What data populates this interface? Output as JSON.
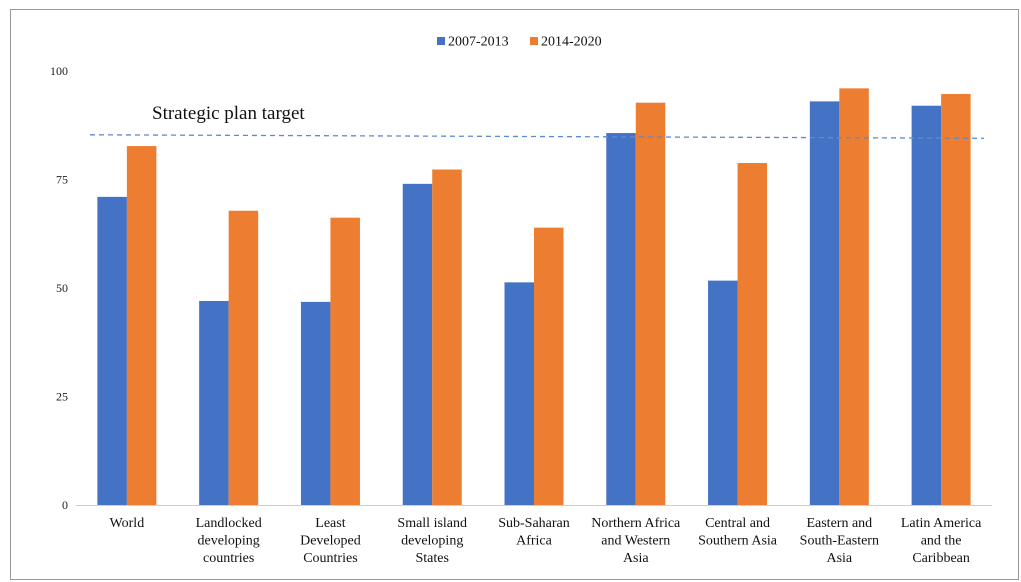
{
  "chart_data": {
    "type": "bar",
    "categories": [
      [
        "World"
      ],
      [
        "Landlocked",
        "developing",
        "countries"
      ],
      [
        "Least",
        "Developed",
        "Countries"
      ],
      [
        "Small island",
        "developing",
        "States"
      ],
      [
        "Sub-Saharan",
        "Africa"
      ],
      [
        "Northern Africa",
        "and Western",
        "Asia"
      ],
      [
        "Central and",
        "Southern Asia"
      ],
      [
        "Eastern and",
        "South-Eastern",
        "Asia"
      ],
      [
        "Latin America",
        "and the",
        "Caribbean"
      ]
    ],
    "series": [
      {
        "name": "2007-2013",
        "color": "#4472c4",
        "values": [
          71,
          47,
          46.8,
          74,
          51.3,
          85.7,
          51.7,
          93,
          92
        ]
      },
      {
        "name": "2014-2020",
        "color": "#ed7d31",
        "values": [
          82.7,
          67.8,
          66.2,
          77.3,
          63.9,
          92.7,
          78.8,
          96,
          94.7
        ]
      }
    ],
    "ylim": [
      0,
      100
    ],
    "yticks": [
      "0",
      "25",
      "50",
      "75",
      "100"
    ],
    "target": {
      "label": "Strategic plan target",
      "y_start": 85.3,
      "y_end": 84.5,
      "color": "#5b8bd0"
    },
    "legend_position": "top-center",
    "grid": false
  }
}
